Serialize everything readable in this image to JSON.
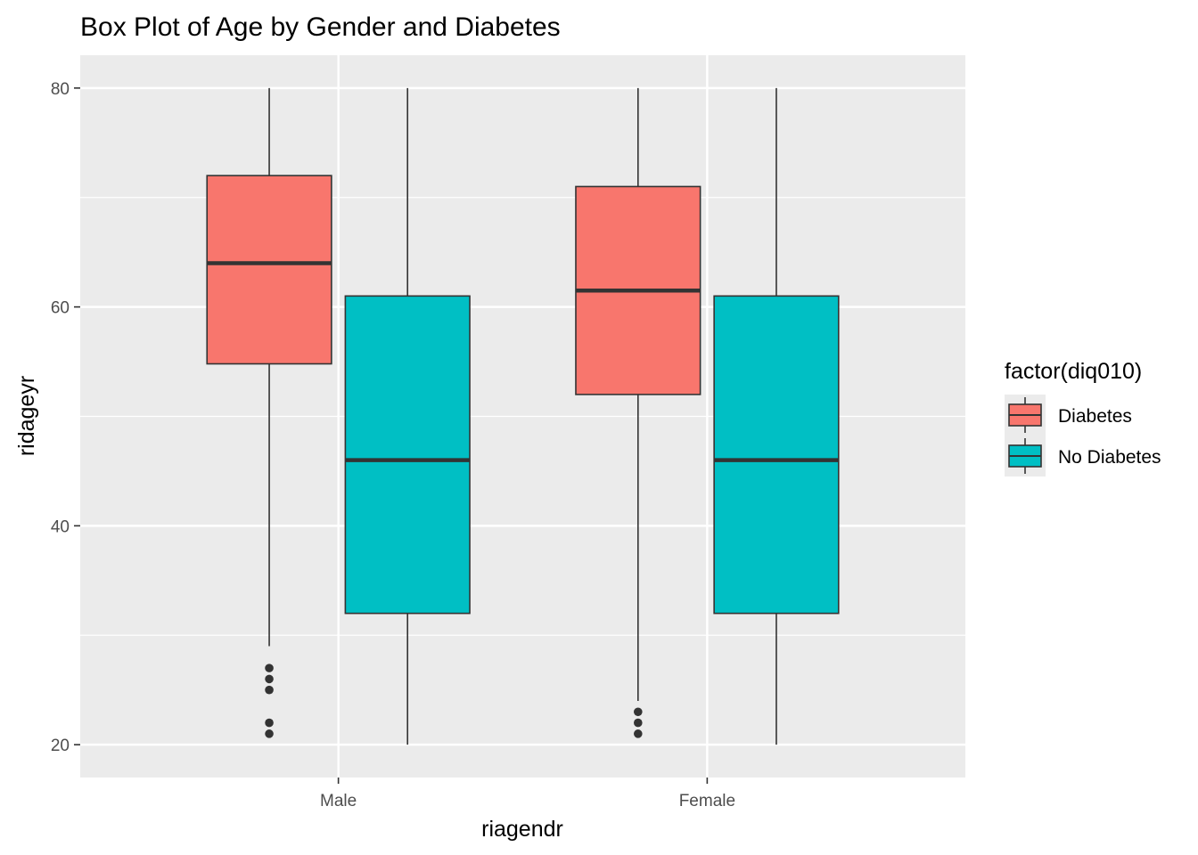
{
  "chart_data": {
    "type": "box",
    "title": "Box Plot of Age by Gender and Diabetes",
    "xlabel": "riagendr",
    "ylabel": "ridageyr",
    "categories": [
      "Male",
      "Female"
    ],
    "ylim": [
      17,
      83
    ],
    "yticks": [
      20,
      40,
      60,
      80
    ],
    "grid": true,
    "legend": {
      "title": "factor(diq010)",
      "position": "right",
      "entries": [
        "Diabetes",
        "No Diabetes"
      ]
    },
    "series": [
      {
        "name": "Diabetes",
        "color": "#F8766D",
        "boxes": [
          {
            "category": "Male",
            "whisker_low": 29,
            "q1": 54.8,
            "median": 64,
            "q3": 72,
            "whisker_high": 80,
            "outliers": [
              27,
              26,
              25,
              22,
              21
            ]
          },
          {
            "category": "Female",
            "whisker_low": 24,
            "q1": 52,
            "median": 61.5,
            "q3": 71,
            "whisker_high": 80,
            "outliers": [
              23,
              22,
              21
            ]
          }
        ]
      },
      {
        "name": "No Diabetes",
        "color": "#00BFC4",
        "boxes": [
          {
            "category": "Male",
            "whisker_low": 20,
            "q1": 32,
            "median": 46,
            "q3": 61,
            "whisker_high": 80,
            "outliers": []
          },
          {
            "category": "Female",
            "whisker_low": 20,
            "q1": 32,
            "median": 46,
            "q3": 61,
            "whisker_high": 80,
            "outliers": []
          }
        ]
      }
    ]
  }
}
